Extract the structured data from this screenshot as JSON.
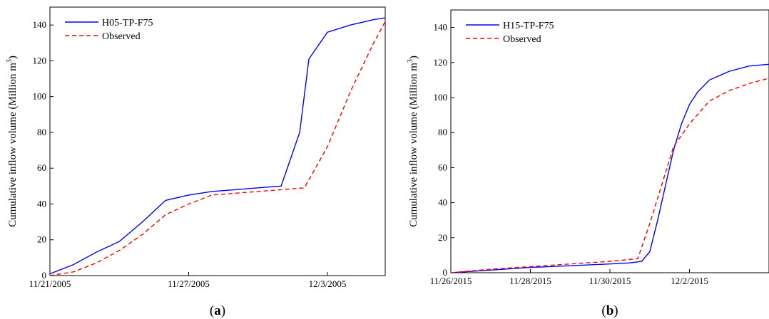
{
  "chart_data": [
    {
      "type": "line",
      "panel_label": "a",
      "ylabel": "Cumulative inflow volume (Million m",
      "ylabel_sup": "3",
      "ylabel_end": ")",
      "ylim": [
        0,
        150
      ],
      "yticks": [
        0,
        20,
        40,
        60,
        80,
        100,
        120,
        140
      ],
      "xlim": [
        0,
        14.5
      ],
      "xticks": [
        {
          "x": 0,
          "label": "11/21/2005"
        },
        {
          "x": 6,
          "label": "11/27/2005"
        },
        {
          "x": 12,
          "label": "12/3/2005"
        }
      ],
      "legend_position": "top-left",
      "series": [
        {
          "name": "H05-TP-F75",
          "color": "#0000ff",
          "dash": "solid",
          "x": [
            0,
            1,
            2,
            3,
            4,
            5,
            6,
            7,
            8,
            9,
            10,
            10.8,
            11.2,
            12,
            13,
            14,
            14.5
          ],
          "y": [
            1,
            6,
            13,
            19,
            30,
            42,
            45,
            47,
            48,
            49,
            50,
            80,
            121,
            136,
            140,
            143,
            144
          ]
        },
        {
          "name": "Observed",
          "color": "#ff0000",
          "dash": "dashed",
          "x": [
            0,
            1,
            2,
            3,
            4,
            5,
            6,
            7,
            8,
            9,
            10,
            11,
            12,
            13,
            14,
            14.5
          ],
          "y": [
            0,
            2,
            7,
            14,
            23,
            34,
            40,
            45,
            46,
            47,
            48,
            49,
            72,
            103,
            130,
            142
          ]
        }
      ]
    },
    {
      "type": "line",
      "panel_label": "b",
      "ylabel": "Cumulative inflow volume (Million m",
      "ylabel_sup": "3",
      "ylabel_end": ")",
      "ylim": [
        0,
        150
      ],
      "yticks": [
        0,
        20,
        40,
        60,
        80,
        100,
        120,
        140
      ],
      "xlim": [
        0,
        8
      ],
      "xticks": [
        {
          "x": 0,
          "label": "11/26/2015"
        },
        {
          "x": 2,
          "label": "11/28/2015"
        },
        {
          "x": 4,
          "label": "11/30/2015"
        },
        {
          "x": 6,
          "label": "12/2/2015"
        }
      ],
      "legend_position": "top-left",
      "series": [
        {
          "name": "H15-TP-F75",
          "color": "#0000ff",
          "dash": "solid",
          "x": [
            0,
            1,
            2,
            3,
            4,
            4.5,
            4.8,
            5,
            5.2,
            5.4,
            5.6,
            5.8,
            6,
            6.2,
            6.5,
            7,
            7.5,
            8
          ],
          "y": [
            0,
            1.5,
            3,
            4,
            5,
            5.6,
            6.5,
            12,
            30,
            50,
            70,
            85,
            96,
            103,
            110,
            115,
            118,
            119
          ]
        },
        {
          "name": "Observed",
          "color": "#ff0000",
          "dash": "dashed",
          "x": [
            0,
            1,
            2,
            3,
            4,
            4.7,
            5,
            5.3,
            5.6,
            6,
            6.5,
            7,
            7.5,
            8
          ],
          "y": [
            0,
            2,
            3.5,
            5,
            6.5,
            8,
            28,
            50,
            72,
            85,
            98,
            104,
            108,
            111
          ]
        }
      ]
    }
  ]
}
